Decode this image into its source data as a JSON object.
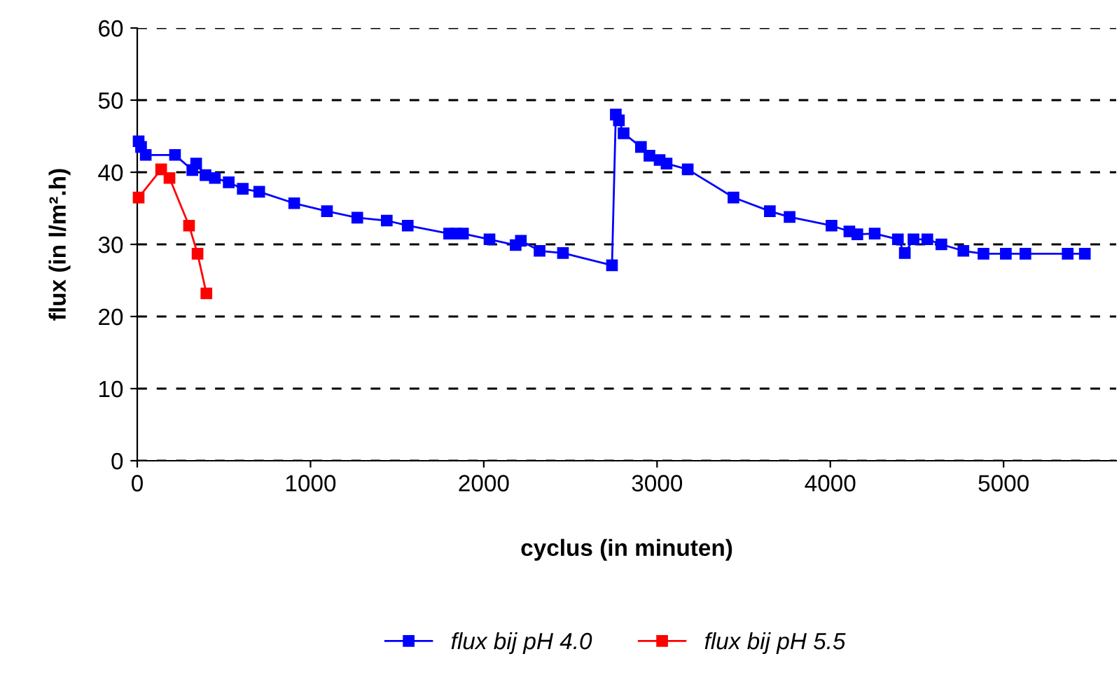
{
  "chart_data": {
    "type": "line",
    "xlabel": "cyclus (in minuten)",
    "ylabel": "flux (in l/m².h)",
    "xlim": [
      0,
      5650
    ],
    "xticks": [
      0,
      1000,
      2000,
      3000,
      4000,
      5000
    ],
    "ylim": [
      0,
      60
    ],
    "yticks": [
      0,
      10,
      20,
      30,
      40,
      50,
      60
    ],
    "grid": "y",
    "legend": "bottom",
    "marker": "square",
    "line_style": "solid",
    "series": [
      {
        "name": "flux bij pH 4.0",
        "color": "#0000ff",
        "x": [
          8,
          22,
          49,
          218,
          318,
          340,
          394,
          448,
          528,
          609,
          704,
          906,
          1095,
          1270,
          1440,
          1561,
          1800,
          1840,
          1880,
          2033,
          2184,
          2214,
          2322,
          2457,
          2740,
          2762,
          2780,
          2807,
          2907,
          2956,
          3015,
          3055,
          3177,
          3441,
          3651,
          3765,
          4007,
          4110,
          4156,
          4256,
          4390,
          4430,
          4480,
          4560,
          4641,
          4768,
          4884,
          5013,
          5126,
          5370,
          5469
        ],
        "values": [
          44.3,
          43.5,
          42.4,
          42.4,
          40.3,
          41.2,
          39.6,
          39.2,
          38.6,
          37.7,
          37.3,
          35.7,
          34.6,
          33.7,
          33.3,
          32.6,
          31.5,
          31.5,
          31.5,
          30.7,
          29.9,
          30.5,
          29.1,
          28.8,
          27.1,
          48.0,
          47.2,
          45.4,
          43.5,
          42.3,
          41.7,
          41.2,
          40.4,
          36.5,
          34.6,
          33.8,
          32.6,
          31.8,
          31.4,
          31.5,
          30.7,
          28.8,
          30.7,
          30.7,
          30.0,
          29.1,
          28.7,
          28.7,
          28.7,
          28.7,
          28.7
        ]
      },
      {
        "name": "flux bij pH 5.5",
        "color": "#ff0000",
        "x": [
          8,
          138,
          186,
          299,
          348,
          399
        ],
        "values": [
          36.5,
          40.4,
          39.2,
          32.6,
          28.7,
          23.2
        ]
      }
    ]
  }
}
